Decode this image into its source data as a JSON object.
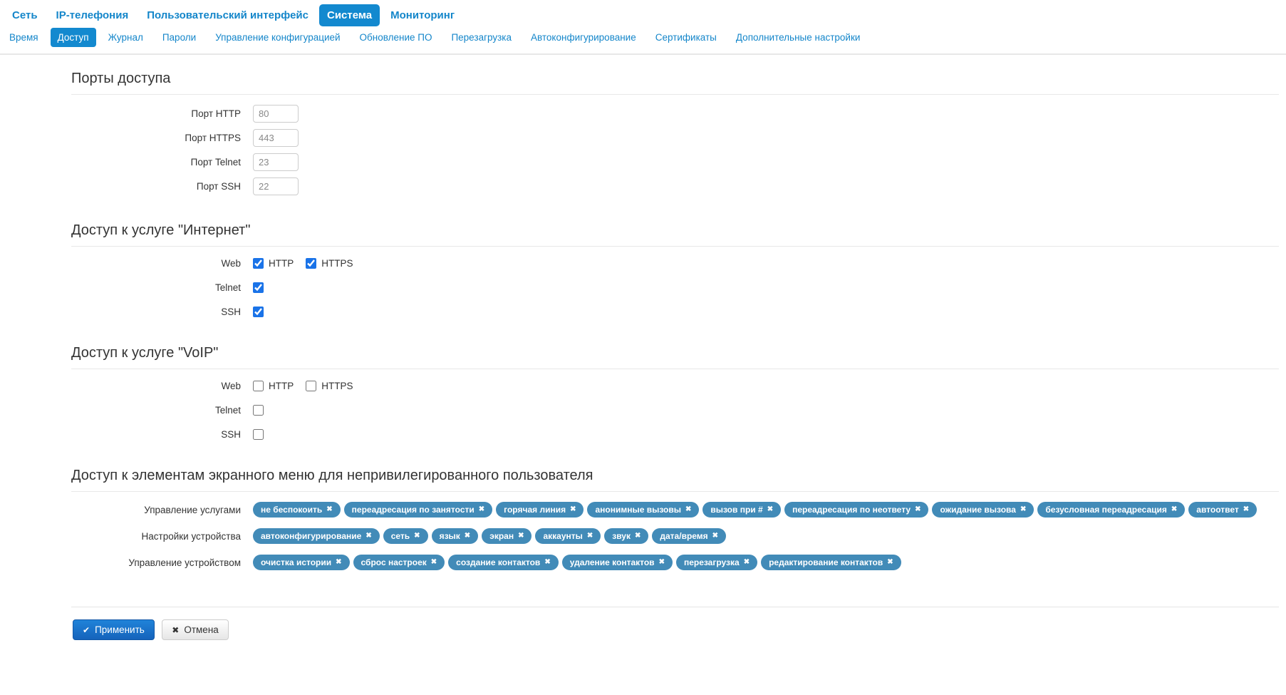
{
  "nav": {
    "primary": [
      {
        "label": "Сеть",
        "active": false
      },
      {
        "label": "IP-телефония",
        "active": false
      },
      {
        "label": "Пользовательский интерфейс",
        "active": false
      },
      {
        "label": "Система",
        "active": true
      },
      {
        "label": "Мониторинг",
        "active": false
      }
    ],
    "secondary": [
      {
        "label": "Время",
        "active": false
      },
      {
        "label": "Доступ",
        "active": true
      },
      {
        "label": "Журнал",
        "active": false
      },
      {
        "label": "Пароли",
        "active": false
      },
      {
        "label": "Управление конфигурацией",
        "active": false
      },
      {
        "label": "Обновление ПО",
        "active": false
      },
      {
        "label": "Перезагрузка",
        "active": false
      },
      {
        "label": "Автоконфигурирование",
        "active": false
      },
      {
        "label": "Сертификаты",
        "active": false
      },
      {
        "label": "Дополнительные настройки",
        "active": false
      }
    ]
  },
  "sections": {
    "ports": {
      "title": "Порты доступа",
      "fields": [
        {
          "label": "Порт HTTP",
          "value": "80"
        },
        {
          "label": "Порт HTTPS",
          "value": "443"
        },
        {
          "label": "Порт Telnet",
          "value": "23"
        },
        {
          "label": "Порт SSH",
          "value": "22"
        }
      ]
    },
    "internet": {
      "title": "Доступ к услуге \"Интернет\"",
      "rows": [
        {
          "label": "Web",
          "checkboxes": [
            {
              "label": "HTTP",
              "checked": true
            },
            {
              "label": "HTTPS",
              "checked": true
            }
          ]
        },
        {
          "label": "Telnet",
          "checkboxes": [
            {
              "label": "",
              "checked": true
            }
          ]
        },
        {
          "label": "SSH",
          "checkboxes": [
            {
              "label": "",
              "checked": true
            }
          ]
        }
      ]
    },
    "voip": {
      "title": "Доступ к услуге \"VoIP\"",
      "rows": [
        {
          "label": "Web",
          "checkboxes": [
            {
              "label": "HTTP",
              "checked": false
            },
            {
              "label": "HTTPS",
              "checked": false
            }
          ]
        },
        {
          "label": "Telnet",
          "checkboxes": [
            {
              "label": "",
              "checked": false
            }
          ]
        },
        {
          "label": "SSH",
          "checkboxes": [
            {
              "label": "",
              "checked": false
            }
          ]
        }
      ]
    },
    "menu_access": {
      "title": "Доступ к элементам экранного меню для непривилегированного пользователя",
      "rows": [
        {
          "label": "Управление услугами",
          "tags": [
            "не беспокоить",
            "переадресация по занятости",
            "горячая линия",
            "анонимные вызовы",
            "вызов при #",
            "переадресация по неответу",
            "ожидание вызова",
            "безусловная переадресация",
            "автоответ"
          ]
        },
        {
          "label": "Настройки устройства",
          "tags": [
            "автоконфигурирование",
            "сеть",
            "язык",
            "экран",
            "аккаунты",
            "звук",
            "дата/время"
          ]
        },
        {
          "label": "Управление устройством",
          "tags": [
            "очистка истории",
            "сброс настроек",
            "создание контактов",
            "удаление контактов",
            "перезагрузка",
            "редактирование контактов"
          ]
        }
      ]
    }
  },
  "footer": {
    "apply_label": "Применить",
    "cancel_label": "Отмена"
  },
  "icons": {
    "apply": "✔",
    "cancel": "✖",
    "tag_remove": "✖"
  },
  "colors": {
    "accent_blue": "#1389cf",
    "link_blue": "#1486ca",
    "tag_blue": "#428bb8"
  }
}
